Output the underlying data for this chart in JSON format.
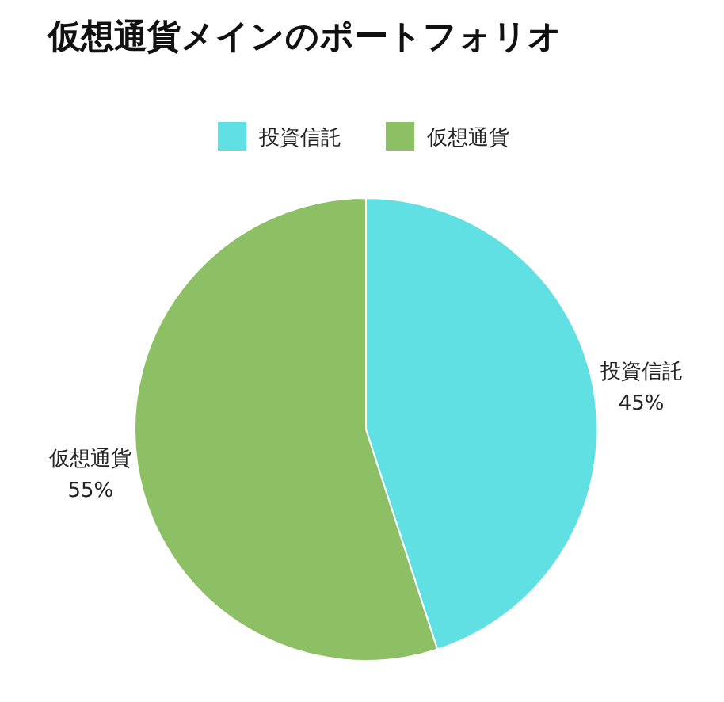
{
  "chart_data": {
    "type": "pie",
    "title": "仮想通貨メインのポートフォリオ",
    "categories": [
      "投資信託",
      "仮想通貨"
    ],
    "values": [
      45,
      55
    ],
    "colors": [
      "#60e0e3",
      "#8dbf65"
    ],
    "value_labels": [
      "45%",
      "55%"
    ],
    "legend": "top"
  }
}
